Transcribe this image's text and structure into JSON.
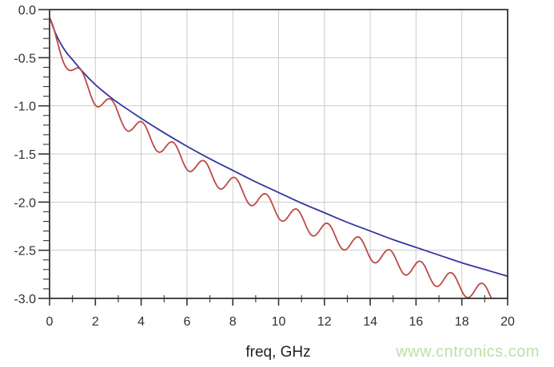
{
  "watermark": {
    "text": "www.cntronics.com",
    "color": "#bedfa8"
  },
  "colors": {
    "background": "#ffffff",
    "axis_frame": "#333333",
    "grid": "#cbcbcb",
    "tick": "#333333",
    "tick_text": "#2f2f2f",
    "blue_curve": "#3434a0",
    "red_curve": "#bc4a47"
  },
  "chart_data": {
    "type": "line",
    "title": "",
    "xlabel": "freq, GHz",
    "ylabel": "",
    "xlim": [
      0,
      20
    ],
    "ylim": [
      -3.0,
      0.0
    ],
    "x_major_step": 2,
    "x_minor_step": 1,
    "y_major_step": 0.5,
    "y_minor_step": 0.1,
    "grid": true,
    "legend": false,
    "x_tick_labels": [
      "0",
      "2",
      "4",
      "6",
      "8",
      "10",
      "12",
      "14",
      "16",
      "18",
      "20"
    ],
    "y_tick_labels": [
      "0.0",
      "-0.5",
      "-1.0",
      "-1.5",
      "-2.0",
      "-2.5",
      "-3.0"
    ],
    "series": [
      {
        "name": "blue-curve",
        "color": "#3434a0",
        "x": [
          0,
          0.25,
          0.5,
          0.75,
          1,
          1.5,
          2,
          2.5,
          3,
          4,
          5,
          6,
          7,
          8,
          9,
          10,
          11,
          12,
          13,
          14,
          15,
          16,
          17,
          18,
          19,
          20
        ],
        "y": [
          -0.08,
          -0.24,
          -0.36,
          -0.45,
          -0.52,
          -0.66,
          -0.78,
          -0.88,
          -0.97,
          -1.13,
          -1.28,
          -1.42,
          -1.55,
          -1.67,
          -1.79,
          -1.9,
          -2.01,
          -2.11,
          -2.21,
          -2.3,
          -2.39,
          -2.47,
          -2.55,
          -2.63,
          -2.7,
          -2.77
        ]
      },
      {
        "name": "red-curve",
        "color": "#bc4a47",
        "x_start": 0,
        "x_step": 0.15,
        "y": [
          -0.08,
          -0.17,
          -0.297,
          -0.432,
          -0.543,
          -0.61,
          -0.633,
          -0.624,
          -0.605,
          -0.622,
          -0.685,
          -0.785,
          -0.892,
          -0.977,
          -1.01,
          -0.996,
          -0.958,
          -0.928,
          -0.935,
          -0.988,
          -1.077,
          -1.169,
          -1.238,
          -1.264,
          -1.245,
          -1.203,
          -1.168,
          -1.17,
          -1.217,
          -1.3,
          -1.391,
          -1.459,
          -1.482,
          -1.463,
          -1.417,
          -1.38,
          -1.379,
          -1.425,
          -1.506,
          -1.596,
          -1.662,
          -1.683,
          -1.659,
          -1.614,
          -1.575,
          -1.572,
          -1.615,
          -1.695,
          -1.782,
          -1.845,
          -1.864,
          -1.839,
          -1.791,
          -1.751,
          -1.747,
          -1.789,
          -1.868,
          -1.954,
          -2.018,
          -2.037,
          -2.012,
          -1.962,
          -1.921,
          -1.916,
          -1.956,
          -2.033,
          -2.118,
          -2.18,
          -2.198,
          -2.172,
          -2.122,
          -2.08,
          -2.074,
          -2.116,
          -2.192,
          -2.275,
          -2.335,
          -2.351,
          -2.324,
          -2.273,
          -2.229,
          -2.222,
          -2.261,
          -2.338,
          -2.421,
          -2.481,
          -2.497,
          -2.469,
          -2.416,
          -2.372,
          -2.363,
          -2.401,
          -2.475,
          -2.558,
          -2.616,
          -2.63,
          -2.601,
          -2.548,
          -2.504,
          -2.495,
          -2.533,
          -2.606,
          -2.686,
          -2.744,
          -2.757,
          -2.726,
          -2.672,
          -2.625,
          -2.616,
          -2.652,
          -2.725,
          -2.805,
          -2.862,
          -2.876,
          -2.845,
          -2.791,
          -2.744,
          -2.734,
          -2.771,
          -2.844,
          -2.924,
          -2.98,
          -2.991,
          -2.96,
          -2.904,
          -2.856,
          -2.844,
          -2.879,
          -2.951,
          -3.03
        ]
      }
    ]
  }
}
